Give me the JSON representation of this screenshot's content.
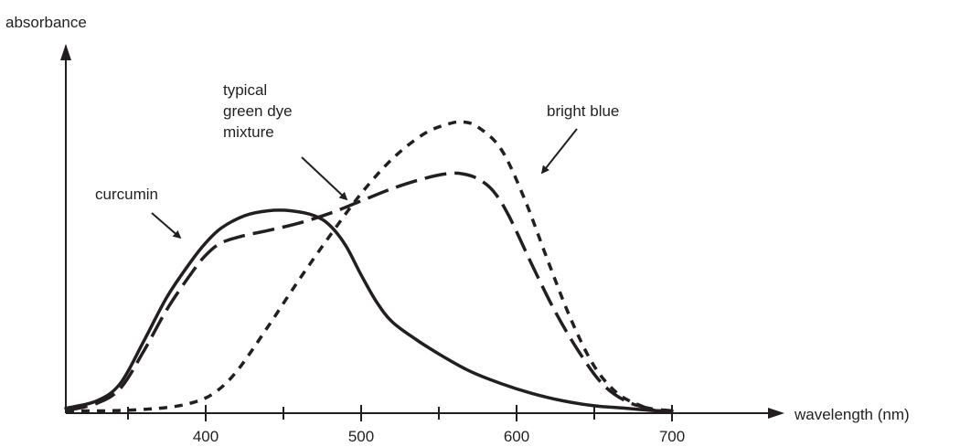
{
  "chart_data": {
    "type": "line",
    "ylabel": "absorbance",
    "xlabel": "wavelength (nm)",
    "xlim": [
      310,
      700
    ],
    "x_ticks": [
      400,
      500,
      600,
      700
    ],
    "x_tick_labels": [
      "400",
      "500",
      "600",
      "700"
    ],
    "x_minor_ticks": [
      350,
      450,
      550,
      650
    ],
    "y_ticks": [],
    "grid": false,
    "legend": "none; curves are labelled directly with arrows",
    "series": [
      {
        "name": "curcumin",
        "style": "solid",
        "x": [
          310,
          330,
          345,
          360,
          375,
          390,
          400,
          410,
          425,
          440,
          455,
          470,
          480,
          490,
          500,
          510,
          520,
          535,
          550,
          570,
          590,
          610,
          630,
          650,
          670,
          690,
          700
        ],
        "y": [
          0.02,
          0.05,
          0.12,
          0.29,
          0.47,
          0.61,
          0.69,
          0.75,
          0.8,
          0.82,
          0.82,
          0.8,
          0.76,
          0.68,
          0.56,
          0.45,
          0.37,
          0.3,
          0.24,
          0.17,
          0.12,
          0.08,
          0.05,
          0.03,
          0.02,
          0.01,
          0.01
        ]
      },
      {
        "name": "typical green dye mixture",
        "style": "long-dash",
        "x": [
          310,
          330,
          345,
          360,
          375,
          390,
          400,
          410,
          425,
          440,
          460,
          480,
          500,
          520,
          540,
          555,
          565,
          575,
          585,
          595,
          610,
          625,
          640,
          655,
          670,
          685,
          700
        ],
        "y": [
          0.01,
          0.04,
          0.1,
          0.25,
          0.42,
          0.56,
          0.64,
          0.69,
          0.72,
          0.74,
          0.77,
          0.81,
          0.86,
          0.91,
          0.95,
          0.97,
          0.97,
          0.95,
          0.9,
          0.8,
          0.6,
          0.41,
          0.25,
          0.12,
          0.05,
          0.02,
          0.01
        ]
      },
      {
        "name": "bright blue",
        "style": "short-dash",
        "x": [
          310,
          340,
          370,
          390,
          405,
          420,
          440,
          460,
          480,
          500,
          520,
          540,
          555,
          565,
          575,
          590,
          605,
          620,
          635,
          650,
          665,
          680,
          690,
          700
        ],
        "y": [
          0.01,
          0.01,
          0.02,
          0.04,
          0.08,
          0.17,
          0.35,
          0.54,
          0.72,
          0.89,
          1.03,
          1.13,
          1.17,
          1.18,
          1.16,
          1.07,
          0.87,
          0.62,
          0.38,
          0.19,
          0.08,
          0.03,
          0.01,
          0.01
        ]
      }
    ],
    "annotations": [
      {
        "lines": [
          "curcumin"
        ],
        "target": "curcumin"
      },
      {
        "lines": [
          "typical",
          "green dye",
          "mixture"
        ],
        "target": "typical green dye mixture"
      },
      {
        "lines": [
          "bright blue"
        ],
        "target": "bright blue"
      }
    ]
  }
}
